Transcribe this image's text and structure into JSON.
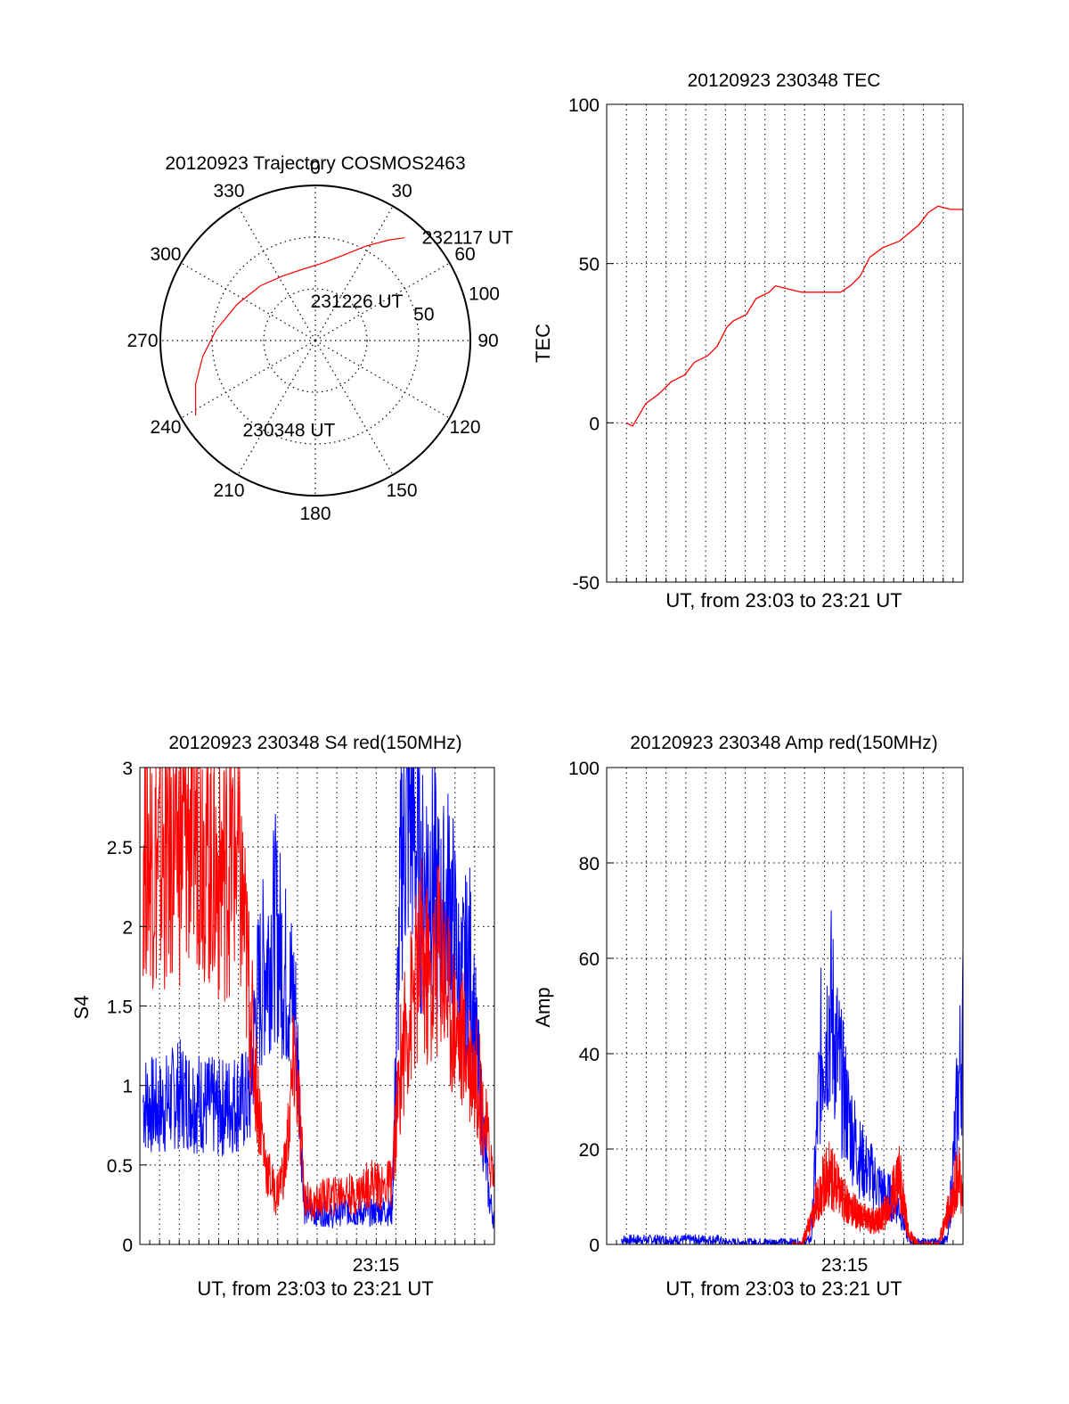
{
  "colors": {
    "red": "#ff0000",
    "blue": "#0000ff",
    "axis": "#000000",
    "grid": "#000000"
  },
  "chart_data": [
    {
      "type": "polar",
      "title": "20120923 Trajectory COSMOS2463",
      "azimuth_labels": [
        "0",
        "30",
        "60",
        "90",
        "120",
        "150",
        "180",
        "210",
        "240",
        "270",
        "300",
        "330"
      ],
      "radial_labels": [
        "50",
        "100"
      ],
      "grid": true,
      "series": [
        {
          "color": "#ff0000",
          "points": [
            {
              "az": 238,
              "el": 8
            },
            {
              "az": 250,
              "el": 16
            },
            {
              "az": 262,
              "el": 24
            },
            {
              "az": 276,
              "el": 32
            },
            {
              "az": 295,
              "el": 40
            },
            {
              "az": 315,
              "el": 45
            },
            {
              "az": 333,
              "el": 48
            },
            {
              "az": 350,
              "el": 48
            },
            {
              "az": 5,
              "el": 45
            },
            {
              "az": 18,
              "el": 38
            },
            {
              "az": 28,
              "el": 28
            },
            {
              "az": 36,
              "el": 18
            },
            {
              "az": 41,
              "el": 11
            }
          ]
        }
      ],
      "annotations": [
        {
          "text": "232117 UT",
          "az": 46,
          "el": 4
        },
        {
          "text": "231226 UT",
          "az": 353,
          "el": 67
        },
        {
          "text": "230348 UT",
          "az": 219,
          "el": 23
        },
        {
          "text": "50",
          "az": 75,
          "el": 31
        },
        {
          "text": "100",
          "az": 73,
          "el": -3
        }
      ]
    },
    {
      "type": "line",
      "title": "20120923 230348 TEC",
      "xlabel": "UT, from 23:03 to 23:21 UT",
      "ylabel": "TEC",
      "xlim": [
        "23:03:00",
        "23:21:17"
      ],
      "ylim": [
        -50,
        100
      ],
      "yticks": [
        -50,
        0,
        50,
        100
      ],
      "grid": true,
      "series": [
        {
          "color": "#ff0000",
          "x": [
            "23:04:00",
            "23:04:20",
            "23:05:00",
            "23:05:40",
            "23:06:20",
            "23:07:00",
            "23:07:30",
            "23:08:10",
            "23:08:40",
            "23:09:10",
            "23:09:30",
            "23:10:10",
            "23:10:40",
            "23:11:20",
            "23:11:40",
            "23:12:20",
            "23:13:00",
            "23:14:00",
            "23:15:00",
            "23:15:30",
            "23:16:00",
            "23:16:30",
            "23:17:10",
            "23:18:00",
            "23:19:00",
            "23:19:30",
            "23:20:00",
            "23:20:40",
            "23:21:17"
          ],
          "y": [
            0,
            -1,
            6,
            9,
            13,
            15,
            19,
            21,
            24,
            30,
            32,
            34,
            39,
            41,
            43,
            42,
            41,
            41,
            41,
            43,
            46,
            52,
            55,
            57,
            62,
            66,
            68,
            67,
            67
          ]
        }
      ]
    },
    {
      "type": "line",
      "title": "20120923 230348 S4 red(150MHz)",
      "xlabel": "UT, from 23:03 to 23:21 UT",
      "ylabel": "S4",
      "xlim": [
        "23:03:00",
        "23:21:17"
      ],
      "ylim": [
        0,
        3
      ],
      "yticks": [
        "0",
        "0.5",
        "1",
        "1.5",
        "2",
        "2.5",
        "3"
      ],
      "xtick_labels": [
        "23:15"
      ],
      "grid": true,
      "series": [
        {
          "color": "#0000ff",
          "x": [
            "23:03:10",
            "23:04:00",
            "23:05:00",
            "23:06:00",
            "23:07:00",
            "23:08:00",
            "23:08:40",
            "23:09:00",
            "23:09:30",
            "23:10:00",
            "23:10:30",
            "23:11:00",
            "23:11:30",
            "23:12:00",
            "23:12:30",
            "23:13:00",
            "23:13:30",
            "23:14:00",
            "23:14:30",
            "23:15:00",
            "23:15:30",
            "23:16:00",
            "23:16:30",
            "23:17:00",
            "23:17:30",
            "23:18:00",
            "23:18:30",
            "23:19:00",
            "23:19:30",
            "23:20:00",
            "23:20:30",
            "23:21:00",
            "23:21:17"
          ],
          "y": [
            0.9,
            0.85,
            0.95,
            0.9,
            0.85,
            0.9,
            0.9,
            1.5,
            1.8,
            2.0,
            1.7,
            1.5,
            0.22,
            0.2,
            0.2,
            0.18,
            0.22,
            0.2,
            0.2,
            0.2,
            0.22,
            0.2,
            2.5,
            2.8,
            2.2,
            2.4,
            2.0,
            2.2,
            1.6,
            1.8,
            1.0,
            0.3,
            0.15
          ]
        },
        {
          "color": "#ff0000",
          "x": [
            "23:03:10",
            "23:04:00",
            "23:05:00",
            "23:06:00",
            "23:07:00",
            "23:08:00",
            "23:08:30",
            "23:09:00",
            "23:09:30",
            "23:10:00",
            "23:10:30",
            "23:11:00",
            "23:11:30",
            "23:12:00",
            "23:12:30",
            "23:13:00",
            "23:13:30",
            "23:14:00",
            "23:14:30",
            "23:15:00",
            "23:15:30",
            "23:16:00",
            "23:16:30",
            "23:17:00",
            "23:17:30",
            "23:18:00",
            "23:18:30",
            "23:19:00",
            "23:19:30",
            "23:20:00",
            "23:20:30",
            "23:21:00",
            "23:21:17"
          ],
          "y": [
            2.6,
            2.4,
            2.5,
            2.7,
            2.3,
            2.5,
            1.8,
            1.0,
            0.5,
            0.3,
            0.5,
            1.2,
            0.3,
            0.25,
            0.3,
            0.3,
            0.35,
            0.3,
            0.35,
            0.4,
            0.35,
            0.4,
            1.2,
            1.5,
            1.8,
            1.6,
            1.9,
            1.5,
            1.3,
            1.2,
            1.0,
            0.6,
            0.4
          ]
        }
      ]
    },
    {
      "type": "line",
      "title": "20120923 230348 Amp red(150MHz)",
      "xlabel": "UT, from 23:03 to 23:21 UT",
      "ylabel": "Amp",
      "xlim": [
        "23:03:00",
        "23:21:17"
      ],
      "ylim": [
        0,
        100
      ],
      "yticks": [
        0,
        20,
        40,
        60,
        80,
        100
      ],
      "xtick_labels": [
        "23:15"
      ],
      "grid": true,
      "series": [
        {
          "color": "#0000ff",
          "x": [
            "23:03:45",
            "23:05:00",
            "23:06:00",
            "23:07:00",
            "23:08:00",
            "23:08:45",
            "23:09:00",
            "23:10:00",
            "23:11:00",
            "23:12:00",
            "23:12:30",
            "23:13:00",
            "23:13:30",
            "23:14:00",
            "23:14:30",
            "23:15:00",
            "23:15:30",
            "23:16:00",
            "23:16:30",
            "23:17:00",
            "23:17:30",
            "23:18:00",
            "23:18:30",
            "23:19:00",
            "23:19:30",
            "23:20:00",
            "23:20:30",
            "23:21:00",
            "23:21:17"
          ],
          "y": [
            1,
            1,
            1,
            1,
            1,
            1,
            0.5,
            0.5,
            0.5,
            0.5,
            0.5,
            0.5,
            1,
            40,
            50,
            35,
            25,
            18,
            15,
            12,
            10,
            8,
            1,
            0.5,
            0.5,
            0.5,
            1,
            30,
            45
          ]
        },
        {
          "color": "#ff0000",
          "x": [
            "23:12:30",
            "23:13:00",
            "23:13:30",
            "23:14:00",
            "23:14:30",
            "23:15:00",
            "23:15:30",
            "23:16:00",
            "23:16:30",
            "23:17:00",
            "23:17:30",
            "23:18:00",
            "23:18:30",
            "23:19:00",
            "23:20:00",
            "23:20:45",
            "23:21:00",
            "23:21:17"
          ],
          "y": [
            0,
            0,
            5,
            12,
            15,
            10,
            8,
            6,
            5,
            5,
            8,
            15,
            2,
            0,
            0,
            10,
            15,
            10
          ]
        }
      ]
    }
  ]
}
